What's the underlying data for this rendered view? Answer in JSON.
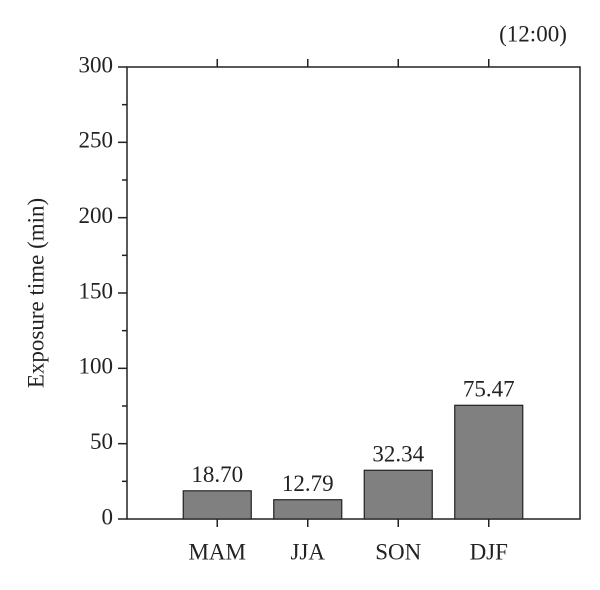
{
  "chart_data": {
    "type": "bar",
    "annotation": "(12:00)",
    "y_label": "Exposure time (min)",
    "categories": [
      "MAM",
      "JJA",
      "SON",
      "DJF"
    ],
    "values": [
      18.7,
      12.79,
      32.34,
      75.47
    ],
    "value_labels": [
      "18.70",
      "12.79",
      "32.34",
      "75.47"
    ],
    "color": "#808080",
    "ylim": [
      0,
      300
    ],
    "yticks": [
      0,
      50,
      100,
      150,
      200,
      250,
      300
    ],
    "grid": false
  }
}
